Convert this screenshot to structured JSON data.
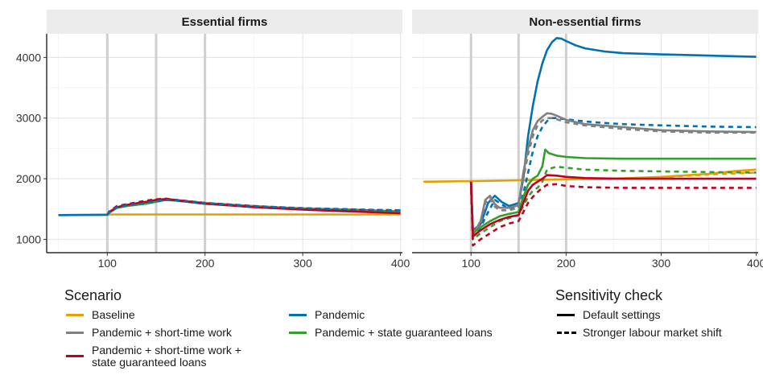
{
  "chart_data": {
    "type": "line",
    "facets": [
      "Essential firms",
      "Non-essential firms"
    ],
    "x_ticks": [
      100,
      200,
      300,
      400
    ],
    "y_ticks": [
      1000,
      2000,
      3000,
      4000
    ],
    "xlim": [
      38,
      402
    ],
    "ylim": [
      780,
      4390
    ],
    "vlines": [
      100,
      150,
      200
    ],
    "grid": true,
    "legend": {
      "position": "bottom",
      "scenario_title": "Scenario",
      "scenario_items": [
        {
          "key": "baseline",
          "label": "Baseline",
          "color": "#E69F00"
        },
        {
          "key": "pandemic",
          "label": "Pandemic",
          "color": "#0072B2"
        },
        {
          "key": "stw",
          "label": "Pandemic + short-time work",
          "color": "#808080"
        },
        {
          "key": "loans",
          "label": "Pandemic + state guaranteed loans",
          "color": "#33A02C"
        },
        {
          "key": "stw_loans",
          "label": "Pandemic + short-time work +\nstate guaranteed loans",
          "color": "#C00020"
        }
      ],
      "sensitivity_title": "Sensitivity check",
      "sensitivity_items": [
        {
          "key": "default",
          "label": "Default settings",
          "style": "solid"
        },
        {
          "key": "stronger",
          "label": "Stronger labour market shift",
          "style": "dashed"
        }
      ]
    },
    "series": [
      {
        "facet": 0,
        "scenario": "baseline",
        "style": "solid",
        "x": [
          50,
          100,
          102,
          150,
          200,
          250,
          300,
          350,
          400
        ],
        "y": [
          1400,
          1405,
          1410,
          1410,
          1410,
          1410,
          1410,
          1410,
          1410
        ]
      },
      {
        "facet": 0,
        "scenario": "pandemic",
        "style": "solid",
        "x": [
          50,
          100,
          102,
          110,
          120,
          130,
          140,
          150,
          160,
          170,
          200,
          250,
          300,
          350,
          400
        ],
        "y": [
          1400,
          1405,
          1440,
          1520,
          1550,
          1570,
          1590,
          1620,
          1650,
          1640,
          1590,
          1540,
          1510,
          1490,
          1460
        ]
      },
      {
        "facet": 0,
        "scenario": "stw",
        "style": "solid",
        "x": [
          100,
          102,
          110,
          120,
          140,
          150,
          160,
          170,
          200,
          250,
          300,
          350,
          400
        ],
        "y": [
          1405,
          1450,
          1530,
          1560,
          1610,
          1650,
          1670,
          1650,
          1600,
          1550,
          1510,
          1480,
          1450
        ]
      },
      {
        "facet": 0,
        "scenario": "loans",
        "style": "solid",
        "x": [
          100,
          102,
          110,
          120,
          140,
          150,
          160,
          170,
          200,
          250,
          300,
          350,
          400
        ],
        "y": [
          1405,
          1440,
          1520,
          1550,
          1590,
          1625,
          1650,
          1640,
          1585,
          1535,
          1500,
          1475,
          1445
        ]
      },
      {
        "facet": 0,
        "scenario": "stw_loans",
        "style": "solid",
        "x": [
          100,
          102,
          110,
          120,
          140,
          150,
          160,
          170,
          200,
          250,
          300,
          350,
          400
        ],
        "y": [
          1405,
          1450,
          1530,
          1570,
          1620,
          1650,
          1660,
          1645,
          1590,
          1530,
          1490,
          1460,
          1430
        ]
      },
      {
        "facet": 0,
        "scenario": "stw_loans",
        "style": "dashed",
        "x": [
          100,
          102,
          110,
          120,
          140,
          150,
          160,
          170,
          200,
          250,
          300,
          350,
          400
        ],
        "y": [
          1405,
          1460,
          1550,
          1580,
          1640,
          1660,
          1670,
          1650,
          1600,
          1550,
          1510,
          1490,
          1480
        ]
      },
      {
        "facet": 0,
        "scenario": "pandemic",
        "style": "dashed",
        "x": [
          100,
          102,
          110,
          120,
          140,
          150,
          160,
          170,
          200,
          250,
          300,
          350,
          400
        ],
        "y": [
          1405,
          1450,
          1530,
          1560,
          1600,
          1630,
          1650,
          1640,
          1595,
          1545,
          1515,
          1495,
          1475
        ]
      },
      {
        "facet": 1,
        "scenario": "baseline",
        "style": "solid",
        "x": [
          50,
          100,
          150,
          200,
          250,
          300,
          350,
          380,
          400
        ],
        "y": [
          1950,
          1960,
          1975,
          1990,
          2000,
          2030,
          2080,
          2130,
          2150
        ]
      },
      {
        "facet": 1,
        "scenario": "baseline",
        "style": "dashed",
        "x": [
          150,
          200,
          250,
          300,
          350,
          400
        ],
        "y": [
          1975,
          1990,
          2000,
          2025,
          2070,
          2100
        ]
      },
      {
        "facet": 1,
        "scenario": "pandemic",
        "style": "solid",
        "x": [
          100,
          102,
          110,
          118,
          125,
          132,
          140,
          150,
          155,
          160,
          165,
          170,
          175,
          180,
          185,
          190,
          195,
          200,
          210,
          220,
          240,
          260,
          300,
          350,
          400
        ],
        "y": [
          1950,
          1150,
          1250,
          1600,
          1720,
          1620,
          1550,
          1600,
          2000,
          2700,
          3200,
          3600,
          3900,
          4120,
          4250,
          4320,
          4310,
          4270,
          4200,
          4150,
          4100,
          4070,
          4050,
          4030,
          4010
        ]
      },
      {
        "facet": 1,
        "scenario": "pandemic",
        "style": "dashed",
        "x": [
          100,
          102,
          110,
          118,
          125,
          132,
          140,
          150,
          155,
          160,
          165,
          170,
          175,
          180,
          185,
          190,
          200,
          210,
          230,
          260,
          300,
          350,
          400
        ],
        "y": [
          1950,
          1050,
          1200,
          1450,
          1650,
          1580,
          1500,
          1520,
          1750,
          2100,
          2450,
          2700,
          2850,
          2950,
          3000,
          3000,
          2980,
          2960,
          2930,
          2900,
          2880,
          2860,
          2850
        ]
      },
      {
        "facet": 1,
        "scenario": "stw",
        "style": "solid",
        "x": [
          100,
          102,
          110,
          115,
          120,
          125,
          130,
          140,
          150,
          155,
          160,
          165,
          170,
          175,
          180,
          185,
          190,
          200,
          220,
          260,
          300,
          350,
          400
        ],
        "y": [
          1950,
          1080,
          1300,
          1650,
          1720,
          1580,
          1520,
          1520,
          1560,
          2100,
          2500,
          2800,
          2950,
          3020,
          3080,
          3070,
          3040,
          2970,
          2900,
          2850,
          2800,
          2780,
          2770
        ]
      },
      {
        "facet": 1,
        "scenario": "stw",
        "style": "dashed",
        "x": [
          100,
          102,
          110,
          115,
          120,
          125,
          130,
          140,
          150,
          155,
          160,
          165,
          170,
          175,
          180,
          185,
          190,
          200,
          220,
          260,
          300,
          350,
          400
        ],
        "y": [
          1950,
          1050,
          1250,
          1600,
          1680,
          1540,
          1480,
          1480,
          1520,
          2000,
          2400,
          2700,
          2880,
          2960,
          3000,
          3000,
          2980,
          2930,
          2880,
          2820,
          2780,
          2760,
          2760
        ]
      },
      {
        "facet": 1,
        "scenario": "loans",
        "style": "solid",
        "x": [
          100,
          102,
          110,
          120,
          130,
          140,
          150,
          155,
          160,
          165,
          170,
          175,
          178,
          182,
          190,
          200,
          220,
          260,
          300,
          350,
          400
        ],
        "y": [
          1950,
          1100,
          1200,
          1300,
          1380,
          1420,
          1450,
          1700,
          1900,
          2000,
          2050,
          2200,
          2480,
          2420,
          2380,
          2360,
          2340,
          2330,
          2330,
          2330,
          2330
        ]
      },
      {
        "facet": 1,
        "scenario": "loans",
        "style": "dashed",
        "x": [
          100,
          102,
          110,
          120,
          130,
          140,
          150,
          155,
          160,
          165,
          170,
          175,
          180,
          190,
          200,
          220,
          260,
          300,
          350,
          400
        ],
        "y": [
          1950,
          1000,
          1100,
          1200,
          1300,
          1350,
          1400,
          1550,
          1700,
          1800,
          1850,
          1950,
          2150,
          2200,
          2180,
          2150,
          2130,
          2120,
          2110,
          2100
        ]
      },
      {
        "facet": 1,
        "scenario": "stw_loans",
        "style": "solid",
        "x": [
          100,
          102,
          110,
          120,
          130,
          140,
          150,
          155,
          160,
          165,
          170,
          175,
          180,
          190,
          200,
          220,
          260,
          300,
          350,
          400
        ],
        "y": [
          1950,
          1050,
          1150,
          1250,
          1320,
          1370,
          1400,
          1600,
          1800,
          1900,
          1950,
          2000,
          2060,
          2050,
          2030,
          2010,
          2000,
          2000,
          2000,
          2000
        ]
      },
      {
        "facet": 1,
        "scenario": "stw_loans",
        "style": "dashed",
        "x": [
          100,
          102,
          110,
          120,
          130,
          140,
          150,
          155,
          160,
          165,
          170,
          175,
          180,
          190,
          200,
          220,
          260,
          300,
          350,
          400
        ],
        "y": [
          1950,
          900,
          1000,
          1100,
          1200,
          1260,
          1300,
          1450,
          1600,
          1700,
          1780,
          1850,
          1900,
          1910,
          1880,
          1860,
          1850,
          1850,
          1850,
          1850
        ]
      }
    ]
  }
}
